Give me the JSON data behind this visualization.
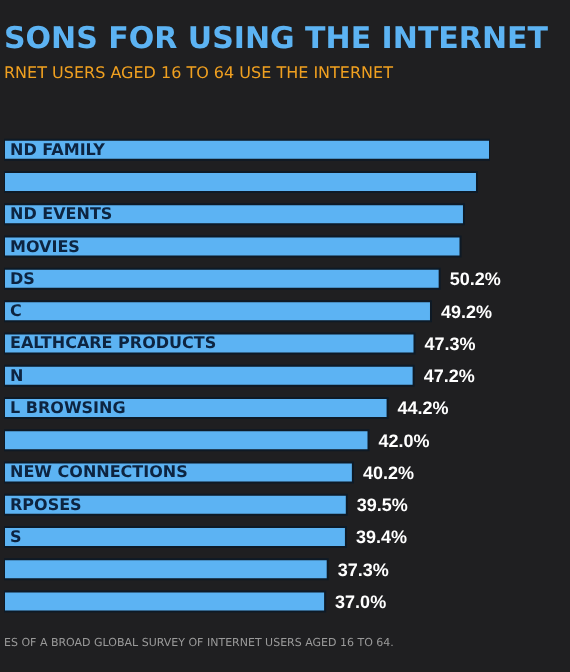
{
  "chart_data": {
    "type": "bar",
    "orientation": "horizontal",
    "title": "SONS FOR USING THE INTERNET",
    "subtitle": "RNET USERS AGED 16 TO 64 USE THE INTERNET",
    "categories": [
      "ND FAMILY",
      null,
      "ND EVENTS",
      "MOVIES",
      "DS",
      "C",
      "EALTHCARE PRODUCTS",
      "N",
      "L BROWSING",
      null,
      "NEW CONNECTIONS",
      "RPOSES",
      "S",
      null,
      null
    ],
    "values": [
      56.0,
      54.5,
      53.0,
      52.6,
      50.2,
      49.2,
      47.3,
      47.2,
      44.2,
      42.0,
      40.2,
      39.5,
      39.4,
      37.3,
      37.0
    ],
    "value_labels": [
      null,
      null,
      null,
      null,
      "50.2%",
      "49.2%",
      "47.3%",
      "47.2%",
      "44.2%",
      "42.0%",
      "40.2%",
      "39.5%",
      "39.4%",
      "37.3%",
      "37.0%"
    ],
    "color": "#5cb3f3",
    "annotations": [
      "ES OF A BROAD GLOBAL SURVEY OF INTERNET USERS AGED 16 TO 64."
    ]
  }
}
